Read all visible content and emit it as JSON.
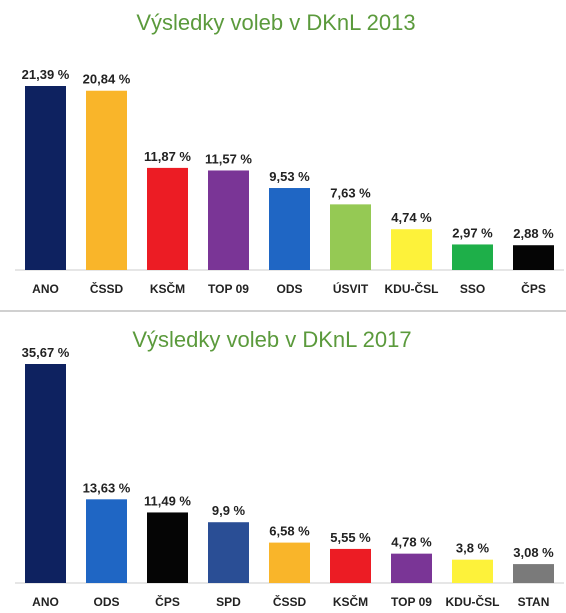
{
  "chart_data": [
    {
      "type": "bar",
      "title": "Výsledky voleb v DKnL 2013",
      "categories": [
        "ANO",
        "ČSSD",
        "KSČM",
        "TOP 09",
        "ODS",
        "ÚSVIT",
        "KDU-ČSL",
        "SSO",
        "ČPS"
      ],
      "values": [
        21.39,
        20.84,
        11.87,
        11.57,
        9.53,
        7.63,
        4.74,
        2.97,
        2.88
      ],
      "value_labels": [
        "21,39 %",
        "20,84 %",
        "11,87 %",
        "11,57 %",
        "9,53 %",
        "7,63 %",
        "4,74 %",
        "2,97 %",
        "2,88 %"
      ],
      "colors": [
        "#0e2260",
        "#f9b52a",
        "#ec1c24",
        "#7a3596",
        "#1f66c4",
        "#95c954",
        "#fdf23a",
        "#1eaf49",
        "#050505"
      ],
      "xlabel": "",
      "ylabel": "",
      "ylim": [
        0,
        21.39
      ],
      "grid": false,
      "legend": "none"
    },
    {
      "type": "bar",
      "title": "Výsledky voleb v DKnL 2017",
      "categories": [
        "ANO",
        "ODS",
        "ČPS",
        "SPD",
        "ČSSD",
        "KSČM",
        "TOP 09",
        "KDU-ČSL",
        "STAN"
      ],
      "values": [
        35.67,
        13.63,
        11.49,
        9.9,
        6.58,
        5.55,
        4.78,
        3.8,
        3.08
      ],
      "value_labels": [
        "35,67 %",
        "13,63 %",
        "11,49 %",
        "9,9 %",
        "6,58 %",
        "5,55 %",
        "4,78 %",
        "3,8 %",
        "3,08 %"
      ],
      "colors": [
        "#0e2260",
        "#1f66c4",
        "#050505",
        "#2a4e95",
        "#f9b52a",
        "#ec1c24",
        "#7a3596",
        "#fdf23a",
        "#7a7a7a"
      ],
      "xlabel": "",
      "ylabel": "",
      "ylim": [
        0,
        35.67
      ],
      "grid": false,
      "legend": "none"
    }
  ],
  "style": {
    "title_color": "#5b9a3c",
    "text_color": "#222222",
    "axis_color": "#cccccc"
  }
}
